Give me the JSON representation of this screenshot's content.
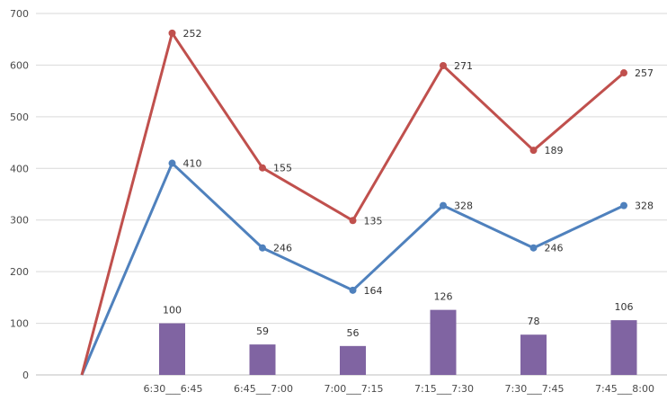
{
  "chart_data": {
    "type": "bar+line",
    "categories": [
      "",
      "6:30___6:45",
      "6:45___7:00",
      "7:00___7:15",
      "7:15___7:30",
      "7:30___7:45",
      "7:45___8:00"
    ],
    "y_ticks": [
      "0",
      "100",
      "200",
      "300",
      "400",
      "500",
      "600",
      "700"
    ],
    "ylim": [
      0,
      700
    ],
    "grid": true,
    "series": [
      {
        "name": "bar",
        "type": "bar",
        "color": "#8064a2",
        "values": [
          null,
          100,
          59,
          56,
          126,
          78,
          106
        ],
        "labels": [
          "",
          "100",
          "59",
          "56",
          "126",
          "78",
          "106"
        ]
      },
      {
        "name": "blue line",
        "type": "line",
        "color": "#4f81bd",
        "values": [
          0,
          410,
          246,
          164,
          328,
          246,
          328
        ],
        "labels": [
          "",
          "410",
          "246",
          "164",
          "328",
          "246",
          "328"
        ]
      },
      {
        "name": "red line",
        "type": "line",
        "color": "#c0504d",
        "values": [
          0,
          662,
          401,
          299,
          599,
          435,
          585
        ],
        "labels": [
          "",
          "252",
          "155",
          "135",
          "271",
          "189",
          "257"
        ]
      }
    ]
  }
}
